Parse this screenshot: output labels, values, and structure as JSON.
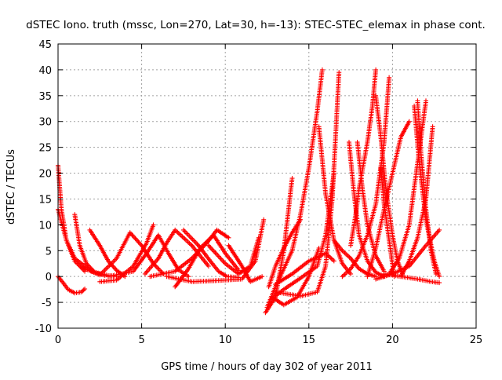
{
  "chart_data": {
    "type": "scatter",
    "title": "dSTEC Iono. truth (mssc, Lon=270, Lat=30, h=-13): STEC-STEC_elemax in phase cont.",
    "xlabel": "GPS time / hours of day 302 of year 2011",
    "ylabel": "dSTEC  / TECUs",
    "xlim": [
      0,
      25
    ],
    "ylim": [
      -10,
      45
    ],
    "xticks": [
      "0",
      "5",
      "10",
      "15",
      "20",
      "25"
    ],
    "yticks": [
      "-10",
      "-5",
      "0",
      "5",
      "10",
      "15",
      "20",
      "25",
      "30",
      "35",
      "40",
      "45"
    ],
    "grid": true,
    "marker": "+",
    "color": "#ff0000",
    "series": [
      {
        "x": [
          0.0,
          0.2,
          0.5,
          1.0,
          1.6
        ],
        "y": [
          21.5,
          13.0,
          7.0,
          3.0,
          1.0
        ]
      },
      {
        "x": [
          0.0,
          0.3,
          0.6,
          1.0,
          1.4,
          1.6
        ],
        "y": [
          0.0,
          -1.2,
          -2.5,
          -3.2,
          -3.0,
          -2.4
        ]
      },
      {
        "x": [
          0.0,
          0.5,
          1.0,
          2.0,
          3.0,
          3.5
        ],
        "y": [
          13.0,
          7.0,
          3.5,
          1.0,
          0.2,
          0.0
        ]
      },
      {
        "x": [
          1.0,
          1.3,
          1.7,
          2.2,
          2.8
        ],
        "y": [
          12.0,
          6.0,
          2.5,
          0.8,
          0.2
        ]
      },
      {
        "x": [
          1.9,
          2.5,
          3.0,
          3.5,
          4.0
        ],
        "y": [
          9.0,
          6.0,
          3.0,
          1.2,
          0.0
        ]
      },
      {
        "x": [
          1.4,
          2.5,
          3.5,
          4.3,
          5.0,
          5.7,
          6.3
        ],
        "y": [
          1.8,
          0.3,
          3.5,
          8.5,
          6.0,
          2.5,
          0.5
        ]
      },
      {
        "x": [
          3.0,
          4.5,
          5.3,
          6.0,
          6.6,
          7.2,
          7.8
        ],
        "y": [
          0.0,
          1.0,
          4.5,
          8.0,
          4.5,
          1.3,
          0.0
        ]
      },
      {
        "x": [
          2.5,
          3.5,
          4.5,
          5.3,
          5.7
        ],
        "y": [
          -1.0,
          -0.7,
          2.0,
          6.5,
          10.0
        ]
      },
      {
        "x": [
          5.2,
          6.0,
          6.5,
          7.0,
          8.0,
          9.0
        ],
        "y": [
          0.5,
          3.5,
          6.5,
          9.0,
          6.0,
          2.0
        ]
      },
      {
        "x": [
          7.0,
          7.8,
          8.5,
          9.3,
          10.0,
          10.8
        ],
        "y": [
          -2.0,
          1.5,
          5.5,
          8.0,
          4.5,
          1.2
        ]
      },
      {
        "x": [
          5.5,
          7.0,
          8.0,
          8.9,
          9.5,
          10.2
        ],
        "y": [
          0.0,
          1.0,
          3.5,
          6.5,
          9.0,
          7.5
        ]
      },
      {
        "x": [
          7.5,
          8.4,
          9.1,
          9.6,
          10.1,
          10.8
        ],
        "y": [
          9.0,
          6.0,
          3.0,
          1.0,
          0.0,
          -0.2
        ]
      },
      {
        "x": [
          6.5,
          8.0,
          9.5,
          11.0,
          11.8,
          12.3
        ],
        "y": [
          0.0,
          -1.0,
          -0.8,
          -0.5,
          3.0,
          11.0
        ]
      },
      {
        "x": [
          9.0,
          10.0,
          10.8,
          11.5,
          12.0
        ],
        "y": [
          6.0,
          2.5,
          0.5,
          2.0,
          7.5
        ]
      },
      {
        "x": [
          10.2,
          11.0,
          11.5,
          12.2
        ],
        "y": [
          6.0,
          2.0,
          -1.0,
          0.0
        ]
      },
      {
        "x": [
          12.4,
          13.0,
          13.5,
          14.0
        ],
        "y": [
          -7.0,
          -4.0,
          5.0,
          19.0
        ]
      },
      {
        "x": [
          12.5,
          13.0,
          13.5,
          14.0,
          14.5,
          15.0,
          15.5,
          15.8
        ],
        "y": [
          -6.0,
          -2.0,
          1.5,
          5.0,
          12.0,
          21.0,
          32.0,
          40.0
        ]
      },
      {
        "x": [
          12.6,
          13.0,
          13.5,
          14.0,
          14.5
        ],
        "y": [
          -2.0,
          2.0,
          5.5,
          8.5,
          11.0
        ]
      },
      {
        "x": [
          12.8,
          13.5,
          14.3,
          15.0,
          15.6
        ],
        "y": [
          -4.0,
          -5.5,
          -4.0,
          0.0,
          5.5
        ]
      },
      {
        "x": [
          12.7,
          13.5,
          14.5,
          15.5,
          16.0,
          16.5
        ],
        "y": [
          -4.5,
          -2.5,
          -0.3,
          2.0,
          8.0,
          20.0
        ]
      },
      {
        "x": [
          13.0,
          14.0,
          15.0,
          16.0,
          16.5
        ],
        "y": [
          -1.5,
          0.5,
          3.0,
          4.5,
          3.0
        ]
      },
      {
        "x": [
          13.0,
          14.5,
          15.5,
          16.0,
          16.4,
          16.8
        ],
        "y": [
          -3.0,
          -3.8,
          -3.0,
          2.0,
          15.0,
          39.5
        ]
      },
      {
        "x": [
          15.6,
          16.0,
          16.5,
          17.0,
          17.5
        ],
        "y": [
          29.0,
          16.0,
          7.0,
          2.5,
          0.5
        ]
      },
      {
        "x": [
          16.5,
          17.0,
          17.5,
          18.0,
          18.5,
          19.0
        ],
        "y": [
          7.0,
          5.0,
          3.5,
          1.5,
          0.5,
          0.0
        ]
      },
      {
        "x": [
          17.4,
          17.7,
          18.0,
          18.5,
          19.0,
          19.5
        ],
        "y": [
          26.0,
          16.0,
          8.0,
          3.0,
          0.8,
          0.0
        ]
      },
      {
        "x": [
          17.5,
          17.8,
          18.0,
          18.5,
          18.8,
          19.0
        ],
        "y": [
          6.0,
          12.0,
          17.0,
          26.0,
          33.0,
          40.0
        ]
      },
      {
        "x": [
          17.9,
          18.2,
          18.5,
          19.0,
          19.5
        ],
        "y": [
          26.0,
          17.0,
          10.0,
          4.0,
          1.0
        ]
      },
      {
        "x": [
          17.0,
          17.5,
          18.0,
          18.5,
          19.0,
          19.5,
          19.8
        ],
        "y": [
          0.0,
          1.5,
          4.0,
          8.0,
          14.0,
          26.0,
          38.5
        ]
      },
      {
        "x": [
          19.0,
          19.3,
          19.6,
          20.0,
          20.3,
          20.6
        ],
        "y": [
          35.0,
          27.0,
          17.0,
          8.0,
          3.0,
          0.5
        ]
      },
      {
        "x": [
          19.3,
          19.5,
          19.8,
          20.1
        ],
        "y": [
          21.0,
          14.0,
          7.0,
          0.0
        ]
      },
      {
        "x": [
          18.5,
          19.0,
          19.5,
          20.0,
          20.5,
          21.0
        ],
        "y": [
          0.0,
          5.5,
          13.0,
          20.0,
          27.0,
          30.0
        ]
      },
      {
        "x": [
          19.8,
          20.4,
          21.0,
          21.5,
          22.0
        ],
        "y": [
          0.5,
          3.5,
          10.0,
          22.0,
          34.0
        ]
      },
      {
        "x": [
          21.5,
          21.7,
          22.0,
          22.3,
          22.6
        ],
        "y": [
          34.0,
          24.0,
          13.0,
          5.0,
          0.5
        ]
      },
      {
        "x": [
          21.3,
          21.6,
          22.0,
          22.5,
          22.8
        ],
        "y": [
          33.0,
          22.0,
          11.0,
          3.0,
          0.0
        ]
      },
      {
        "x": [
          20.5,
          21.0,
          21.5,
          22.0,
          22.4
        ],
        "y": [
          0.0,
          3.0,
          7.5,
          15.0,
          29.0
        ]
      },
      {
        "x": [
          19.0,
          20.0,
          21.0,
          22.0,
          22.8
        ],
        "y": [
          -0.5,
          0.5,
          2.0,
          6.0,
          9.0
        ]
      },
      {
        "x": [
          19.5,
          20.5,
          21.5,
          22.3,
          22.8
        ],
        "y": [
          0.5,
          0.0,
          -0.5,
          -1.0,
          -1.2
        ]
      }
    ]
  }
}
